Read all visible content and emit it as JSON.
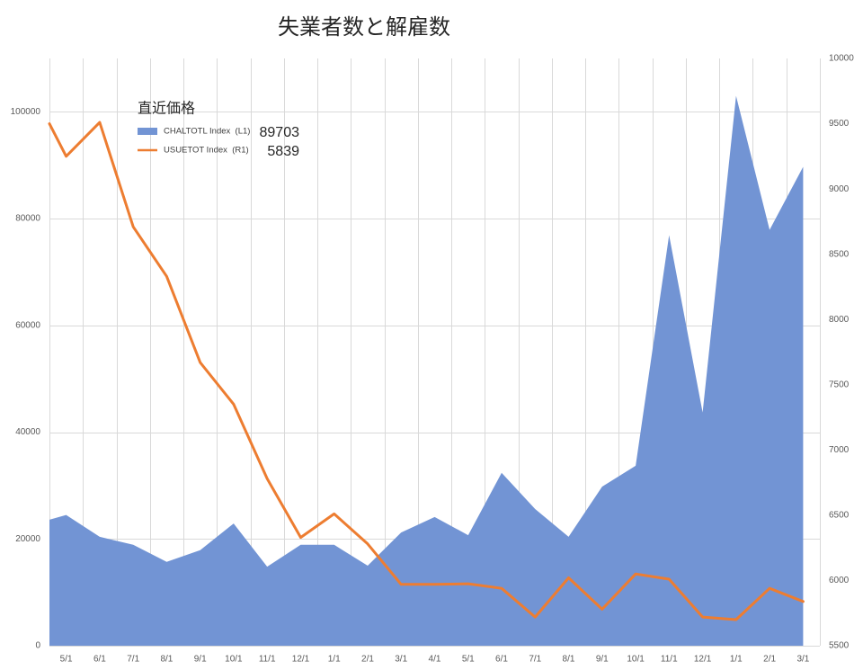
{
  "chart_data": {
    "type": "area",
    "title": "失業者数と解雇数",
    "x": [
      null,
      "5/1",
      "6/1",
      "7/1",
      "8/1",
      "9/1",
      "10/1",
      "11/1",
      "12/1",
      "1/1",
      "2/1",
      "3/1",
      "4/1",
      "5/1",
      "6/1",
      "7/1",
      "8/1",
      "9/1",
      "10/1",
      "11/1",
      "12/1",
      "1/1",
      "2/1",
      "3/1"
    ],
    "y_left": {
      "lim": [
        0,
        110000
      ],
      "ticks": [
        0,
        20000,
        40000,
        60000,
        80000,
        100000
      ]
    },
    "y_right": {
      "lim": [
        5500,
        10000
      ],
      "ticks": [
        5500,
        6000,
        6500,
        7000,
        7500,
        8000,
        8500,
        9000,
        9500,
        10000
      ]
    },
    "grid": true,
    "legend": {
      "title": "直近価格",
      "placement": "top-left"
    },
    "series": [
      {
        "name": "CHALTOTL Index  (L1)",
        "type": "area",
        "axis": "left",
        "color": "#7294d4",
        "last_value": "89703",
        "values": [
          23600,
          24500,
          20400,
          18900,
          15700,
          17900,
          22900,
          14800,
          18900,
          18900,
          15000,
          21200,
          24100,
          20700,
          32400,
          25600,
          20400,
          29800,
          33700,
          76900,
          43700,
          103000,
          77900,
          89703
        ]
      },
      {
        "name": "USUETOT Index  (R1)",
        "type": "line",
        "axis": "right",
        "color": "#ed7d31",
        "last_value": "5839",
        "values": [
          9500,
          9250,
          9510,
          8710,
          8330,
          7670,
          7350,
          6780,
          6330,
          6510,
          6280,
          5970,
          5970,
          5975,
          5940,
          5720,
          6020,
          5780,
          6050,
          6010,
          5720,
          5700,
          5940,
          5839
        ]
      }
    ]
  }
}
